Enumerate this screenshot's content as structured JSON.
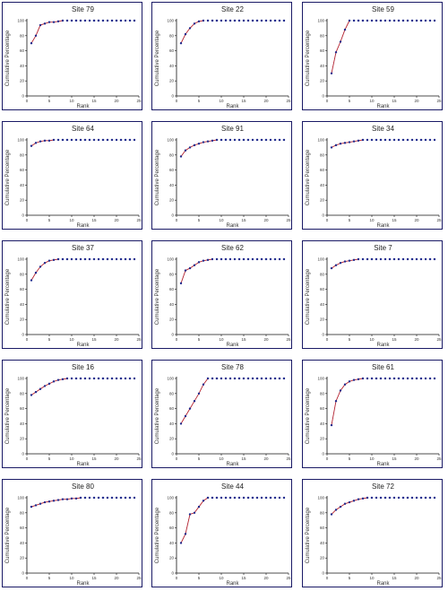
{
  "colors": {
    "points": "#1f2a8c",
    "early_line": "#cc2222",
    "axis": "#111111",
    "panel_border": "#1a1a66"
  },
  "chart_data": [
    {
      "type": "line",
      "title": "Site 79",
      "xlabel": "Rank",
      "ylabel": "Cumulative Percentage",
      "xlim": [
        0,
        25
      ],
      "ylim": [
        0,
        100
      ],
      "x_ticks": [
        "0",
        "5",
        "10",
        "15",
        "20",
        "25"
      ],
      "y_ticks": [
        "0",
        "20",
        "40",
        "60",
        "80",
        "100"
      ],
      "series": [
        {
          "values": [
            70,
            80,
            94,
            96,
            98,
            98,
            99,
            100,
            100,
            100,
            100,
            100,
            100,
            100,
            100,
            100,
            100,
            100,
            100,
            100,
            100,
            100,
            100,
            100
          ]
        }
      ]
    },
    {
      "type": "line",
      "title": "Site 22",
      "xlabel": "Rank",
      "ylabel": "Cumulative Percentage",
      "xlim": [
        0,
        25
      ],
      "ylim": [
        0,
        100
      ],
      "x_ticks": [
        "0",
        "5",
        "10",
        "15",
        "20",
        "25"
      ],
      "y_ticks": [
        "0",
        "20",
        "40",
        "60",
        "80",
        "100"
      ],
      "series": [
        {
          "values": [
            70,
            82,
            90,
            96,
            99,
            100,
            100,
            100,
            100,
            100,
            100,
            100,
            100,
            100,
            100,
            100,
            100,
            100,
            100,
            100,
            100,
            100,
            100,
            100
          ]
        }
      ]
    },
    {
      "type": "line",
      "title": "Site 59",
      "xlabel": "Rank",
      "ylabel": "Cumulative Percentage",
      "xlim": [
        0,
        25
      ],
      "ylim": [
        0,
        100
      ],
      "x_ticks": [
        "0",
        "5",
        "10",
        "15",
        "20",
        "25"
      ],
      "y_ticks": [
        "0",
        "20",
        "40",
        "60",
        "80",
        "100"
      ],
      "series": [
        {
          "values": [
            30,
            58,
            72,
            88,
            100,
            100,
            100,
            100,
            100,
            100,
            100,
            100,
            100,
            100,
            100,
            100,
            100,
            100,
            100,
            100,
            100,
            100,
            100,
            100
          ]
        }
      ]
    },
    {
      "type": "line",
      "title": "Site 64",
      "xlabel": "Rank",
      "ylabel": "Cumulative Percentage",
      "xlim": [
        0,
        25
      ],
      "ylim": [
        0,
        100
      ],
      "x_ticks": [
        "0",
        "5",
        "10",
        "15",
        "20",
        "25"
      ],
      "y_ticks": [
        "0",
        "20",
        "40",
        "60",
        "80",
        "100"
      ],
      "series": [
        {
          "values": [
            92,
            96,
            98,
            99,
            99,
            100,
            100,
            100,
            100,
            100,
            100,
            100,
            100,
            100,
            100,
            100,
            100,
            100,
            100,
            100,
            100,
            100,
            100,
            100
          ]
        }
      ]
    },
    {
      "type": "line",
      "title": "Site 91",
      "xlabel": "Rank",
      "ylabel": "Cumulative Percentage",
      "xlim": [
        0,
        25
      ],
      "ylim": [
        0,
        100
      ],
      "x_ticks": [
        "0",
        "5",
        "10",
        "15",
        "20",
        "25"
      ],
      "y_ticks": [
        "0",
        "20",
        "40",
        "60",
        "80",
        "100"
      ],
      "series": [
        {
          "values": [
            78,
            86,
            90,
            93,
            95,
            97,
            98,
            99,
            100,
            100,
            100,
            100,
            100,
            100,
            100,
            100,
            100,
            100,
            100,
            100,
            100,
            100,
            100,
            100
          ]
        }
      ]
    },
    {
      "type": "line",
      "title": "Site 34",
      "xlabel": "Rank",
      "ylabel": "Cumulative Percentage",
      "xlim": [
        0,
        25
      ],
      "ylim": [
        0,
        100
      ],
      "x_ticks": [
        "0",
        "5",
        "10",
        "15",
        "20",
        "25"
      ],
      "y_ticks": [
        "0",
        "20",
        "40",
        "60",
        "80",
        "100"
      ],
      "series": [
        {
          "values": [
            90,
            93,
            95,
            96,
            97,
            98,
            99,
            100,
            100,
            100,
            100,
            100,
            100,
            100,
            100,
            100,
            100,
            100,
            100,
            100,
            100,
            100,
            100,
            100
          ]
        }
      ]
    },
    {
      "type": "line",
      "title": "Site 37",
      "xlabel": "Rank",
      "ylabel": "Cumulative Percentage",
      "xlim": [
        0,
        25
      ],
      "ylim": [
        0,
        100
      ],
      "x_ticks": [
        "0",
        "5",
        "10",
        "15",
        "20",
        "25"
      ],
      "y_ticks": [
        "0",
        "20",
        "40",
        "60",
        "80",
        "100"
      ],
      "series": [
        {
          "values": [
            72,
            82,
            90,
            95,
            98,
            99,
            100,
            100,
            100,
            100,
            100,
            100,
            100,
            100,
            100,
            100,
            100,
            100,
            100,
            100,
            100,
            100,
            100,
            100
          ]
        }
      ]
    },
    {
      "type": "line",
      "title": "Site 62",
      "xlabel": "Rank",
      "ylabel": "Cumulative Percentage",
      "xlim": [
        0,
        25
      ],
      "ylim": [
        0,
        100
      ],
      "x_ticks": [
        "0",
        "5",
        "10",
        "15",
        "20",
        "25"
      ],
      "y_ticks": [
        "0",
        "20",
        "40",
        "60",
        "80",
        "100"
      ],
      "series": [
        {
          "values": [
            68,
            85,
            88,
            92,
            96,
            98,
            99,
            100,
            100,
            100,
            100,
            100,
            100,
            100,
            100,
            100,
            100,
            100,
            100,
            100,
            100,
            100,
            100,
            100
          ]
        }
      ]
    },
    {
      "type": "line",
      "title": "Site 7",
      "xlabel": "Rank",
      "ylabel": "Cumulative Percentage",
      "xlim": [
        0,
        25
      ],
      "ylim": [
        0,
        100
      ],
      "x_ticks": [
        "0",
        "5",
        "10",
        "15",
        "20",
        "25"
      ],
      "y_ticks": [
        "0",
        "20",
        "40",
        "60",
        "80",
        "100"
      ],
      "series": [
        {
          "values": [
            88,
            92,
            95,
            97,
            98,
            99,
            100,
            100,
            100,
            100,
            100,
            100,
            100,
            100,
            100,
            100,
            100,
            100,
            100,
            100,
            100,
            100,
            100,
            100
          ]
        }
      ]
    },
    {
      "type": "line",
      "title": "Site 16",
      "xlabel": "Rank",
      "ylabel": "Cumulative Percentage",
      "xlim": [
        0,
        25
      ],
      "ylim": [
        0,
        100
      ],
      "x_ticks": [
        "0",
        "5",
        "10",
        "15",
        "20",
        "25"
      ],
      "y_ticks": [
        "0",
        "20",
        "40",
        "60",
        "80",
        "100"
      ],
      "series": [
        {
          "values": [
            78,
            82,
            86,
            90,
            93,
            96,
            98,
            99,
            100,
            100,
            100,
            100,
            100,
            100,
            100,
            100,
            100,
            100,
            100,
            100,
            100,
            100,
            100,
            100
          ]
        }
      ]
    },
    {
      "type": "line",
      "title": "Site 78",
      "xlabel": "Rank",
      "ylabel": "Cumulative Percentage",
      "xlim": [
        0,
        25
      ],
      "ylim": [
        0,
        100
      ],
      "x_ticks": [
        "0",
        "5",
        "10",
        "15",
        "20",
        "25"
      ],
      "y_ticks": [
        "0",
        "20",
        "40",
        "60",
        "80",
        "100"
      ],
      "series": [
        {
          "values": [
            40,
            50,
            60,
            70,
            80,
            92,
            100,
            100,
            100,
            100,
            100,
            100,
            100,
            100,
            100,
            100,
            100,
            100,
            100,
            100,
            100,
            100,
            100,
            100
          ]
        }
      ]
    },
    {
      "type": "line",
      "title": "Site 61",
      "xlabel": "Rank",
      "ylabel": "Cumulative Percentage",
      "xlim": [
        0,
        25
      ],
      "ylim": [
        0,
        100
      ],
      "x_ticks": [
        "0",
        "5",
        "10",
        "15",
        "20",
        "25"
      ],
      "y_ticks": [
        "0",
        "20",
        "40",
        "60",
        "80",
        "100"
      ],
      "series": [
        {
          "values": [
            38,
            70,
            84,
            92,
            96,
            98,
            99,
            100,
            100,
            100,
            100,
            100,
            100,
            100,
            100,
            100,
            100,
            100,
            100,
            100,
            100,
            100,
            100,
            100
          ]
        }
      ]
    },
    {
      "type": "line",
      "title": "Site 80",
      "xlabel": "Rank",
      "ylabel": "Cumulative Percentage",
      "xlim": [
        0,
        25
      ],
      "ylim": [
        0,
        100
      ],
      "x_ticks": [
        "0",
        "5",
        "10",
        "15",
        "20",
        "25"
      ],
      "y_ticks": [
        "0",
        "20",
        "40",
        "60",
        "80",
        "100"
      ],
      "series": [
        {
          "values": [
            88,
            90,
            92,
            94,
            95,
            96,
            97,
            98,
            98,
            99,
            99,
            100,
            100,
            100,
            100,
            100,
            100,
            100,
            100,
            100,
            100,
            100,
            100,
            100
          ]
        }
      ]
    },
    {
      "type": "line",
      "title": "Site 44",
      "xlabel": "Rank",
      "ylabel": "Cumulative Percentage",
      "xlim": [
        0,
        25
      ],
      "ylim": [
        0,
        100
      ],
      "x_ticks": [
        "0",
        "5",
        "10",
        "15",
        "20",
        "25"
      ],
      "y_ticks": [
        "0",
        "20",
        "40",
        "60",
        "80",
        "100"
      ],
      "series": [
        {
          "values": [
            40,
            52,
            78,
            80,
            88,
            96,
            100,
            100,
            100,
            100,
            100,
            100,
            100,
            100,
            100,
            100,
            100,
            100,
            100,
            100,
            100,
            100,
            100,
            100
          ]
        }
      ]
    },
    {
      "type": "line",
      "title": "Site 72",
      "xlabel": "Rank",
      "ylabel": "Cumulative Percentage",
      "xlim": [
        0,
        25
      ],
      "ylim": [
        0,
        100
      ],
      "x_ticks": [
        "0",
        "5",
        "10",
        "15",
        "20",
        "25"
      ],
      "y_ticks": [
        "0",
        "20",
        "40",
        "60",
        "80",
        "100"
      ],
      "series": [
        {
          "values": [
            78,
            84,
            88,
            92,
            94,
            96,
            98,
            99,
            100,
            100,
            100,
            100,
            100,
            100,
            100,
            100,
            100,
            100,
            100,
            100,
            100,
            100,
            100,
            100
          ]
        }
      ]
    }
  ]
}
